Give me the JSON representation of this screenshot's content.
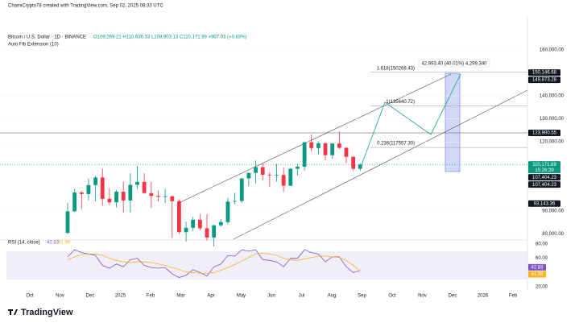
{
  "header": {
    "credit": "ChamiCrypto78 created with TradingView.com, Sep 02, 2025 08:33 UTC",
    "symbol": "Bitcoin / U.S. Dollar · 1D · BINANCE",
    "ohlc": "O109,269.21 H110,636.33 L108,903.13 C110,171.89 +907.03 (+0.83%)",
    "indicator": "Auto Fib Extension (10)"
  },
  "footer": {
    "logo": "TradingView"
  },
  "chart_data": [
    {
      "type": "candlestick",
      "up_color": "#089981",
      "down_color": "#f23645",
      "ylim": [
        78000,
        174000
      ],
      "yticks": [
        {
          "value": 80000,
          "label": "80,000.00"
        },
        {
          "value": 90000,
          "label": "90,000.00"
        },
        {
          "value": 120000,
          "label": "120,000.00"
        },
        {
          "value": 130000,
          "label": "130,000.00"
        },
        {
          "value": 140000,
          "label": "140,000.00"
        },
        {
          "value": 160000,
          "label": "160,000.00"
        }
      ],
      "x_labels": [
        "Oct",
        "Nov",
        "Dec",
        "2025",
        "Feb",
        "Mar",
        "Apr",
        "May",
        "Jun",
        "Jul",
        "Aug",
        "Sep",
        "Oct",
        "Nov",
        "Dec",
        "2026",
        "Feb"
      ],
      "open": [
        80400,
        89800,
        98000,
        97300,
        101200,
        104500,
        95200,
        93700,
        98300,
        94500,
        101300,
        102600,
        97700,
        96500,
        96100,
        96300,
        94200,
        80700,
        82600,
        86100,
        82400,
        78400,
        83700,
        85100,
        94000,
        94300,
        104100,
        106500,
        109000,
        105700,
        105600,
        105600,
        100900,
        108300,
        109200,
        119800,
        117300,
        119400,
        114200,
        119300,
        117400,
        113500,
        108300
      ],
      "high": [
        93500,
        99600,
        98700,
        104000,
        105200,
        108400,
        99900,
        99000,
        102700,
        106400,
        109600,
        106400,
        102500,
        98800,
        99500,
        96500,
        95000,
        85300,
        87500,
        88700,
        88500,
        84000,
        86400,
        95700,
        97900,
        104300,
        106500,
        111900,
        110400,
        106800,
        110500,
        108900,
        108500,
        110500,
        119900,
        123200,
        120200,
        119800,
        119300,
        124500,
        117600,
        113600,
        110600
      ],
      "low": [
        79800,
        89400,
        90800,
        94500,
        94200,
        92200,
        92500,
        91500,
        89300,
        89300,
        99500,
        97700,
        91200,
        94100,
        93400,
        78200,
        80000,
        76600,
        81200,
        81600,
        77100,
        74500,
        83100,
        84100,
        92800,
        93400,
        100700,
        102000,
        103100,
        100400,
        102700,
        98200,
        100800,
        105300,
        107500,
        115700,
        114700,
        112000,
        112600,
        116800,
        110700,
        107400,
        107400
      ],
      "close": [
        89800,
        98000,
        97300,
        101200,
        104500,
        95200,
        93700,
        98300,
        94500,
        101300,
        102600,
        97700,
        96500,
        96100,
        96300,
        94200,
        80700,
        82600,
        86100,
        82400,
        78400,
        83700,
        85100,
        94000,
        94300,
        104100,
        106500,
        109000,
        105700,
        105600,
        105600,
        100900,
        108300,
        109200,
        119800,
        117300,
        119400,
        114200,
        119300,
        117400,
        113500,
        108300,
        110171.89
      ],
      "fib_levels": [
        {
          "value": 150268.43,
          "label": "1.618(150268.43)"
        },
        {
          "value": 135640.72,
          "label": "1(135640.72)"
        },
        {
          "value": 117557.3,
          "label": "0.236(117557.30)"
        }
      ],
      "range_note": "42,993.40 (40.01%) 4,299,340",
      "hlines": [
        {
          "value": 123900.55
        },
        {
          "value": 110171.89
        }
      ],
      "price_badges": [
        {
          "value": 150146.68,
          "label": "150,146.68",
          "color": "#131722"
        },
        {
          "value": 149873.28,
          "label": "149,873.28",
          "color": "#131722"
        },
        {
          "value": 123900.55,
          "label": "123,900.55",
          "color": "#131722"
        },
        {
          "value": 110171.89,
          "label": "110,171.89",
          "sub": "15:26:39",
          "color": "#089981"
        },
        {
          "value": 107404.23,
          "label": "107,404.23",
          "color": "#131722"
        },
        {
          "value": 107404.23,
          "label": "107,404.23",
          "color": "#131722"
        },
        {
          "value": 93143.36,
          "label": "93,143.36",
          "color": "#131722"
        }
      ]
    },
    {
      "type": "line",
      "title": "RSI (14, close)",
      "ylim": [
        20,
        80
      ],
      "yticks": [
        {
          "value": 20,
          "label": "20.00"
        },
        {
          "value": 60,
          "label": "60.00"
        },
        {
          "value": 80,
          "label": "80.00"
        }
      ],
      "band": [
        30,
        70
      ],
      "series": [
        {
          "name": "RSI",
          "color": "#7e57c2",
          "value_label": "42.83",
          "values": [
            62,
            72,
            68,
            66,
            64,
            50,
            46,
            52,
            48,
            58,
            60,
            50,
            47,
            46,
            47,
            38,
            33,
            36,
            44,
            40,
            35,
            48,
            52,
            64,
            63,
            72,
            70,
            72,
            58,
            57,
            55,
            48,
            60,
            60,
            72,
            68,
            66,
            55,
            62,
            62,
            48,
            40,
            42.83
          ]
        },
        {
          "name": "MA",
          "color": "#f7b225",
          "value_label": "41.98",
          "values": [
            58,
            62,
            65,
            66,
            66,
            64,
            60,
            57,
            55,
            54,
            55,
            55,
            54,
            52,
            50,
            47,
            44,
            41,
            40,
            39,
            39,
            40,
            43,
            47,
            51,
            56,
            61,
            66,
            67,
            66,
            64,
            60,
            58,
            57,
            59,
            61,
            63,
            63,
            62,
            61,
            57,
            50,
            41.98
          ]
        }
      ]
    }
  ]
}
